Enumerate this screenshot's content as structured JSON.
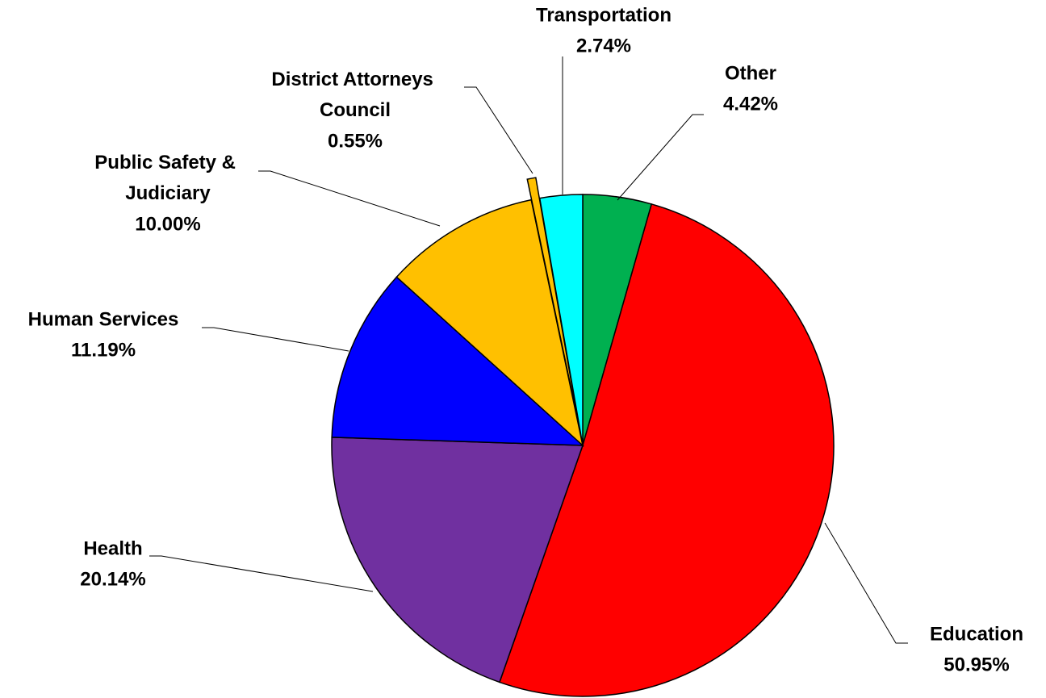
{
  "chart_data": {
    "type": "pie",
    "categories": [
      "Other",
      "Education",
      "Health",
      "Human Services",
      "Public Safety & Judiciary",
      "District Attorneys Council",
      "Transportation"
    ],
    "values": [
      4.42,
      50.95,
      20.14,
      11.19,
      10.0,
      0.55,
      2.74
    ],
    "value_labels": [
      "4.42%",
      "50.95%",
      "20.14%",
      "11.19%",
      "10.00%",
      "0.55%",
      "2.74%"
    ],
    "colors": [
      "#00b050",
      "#ff0000",
      "#7030a0",
      "#0000ff",
      "#ffc000",
      "#ffc000",
      "#00ffff"
    ],
    "exploded": [
      "District Attorneys Council"
    ]
  }
}
